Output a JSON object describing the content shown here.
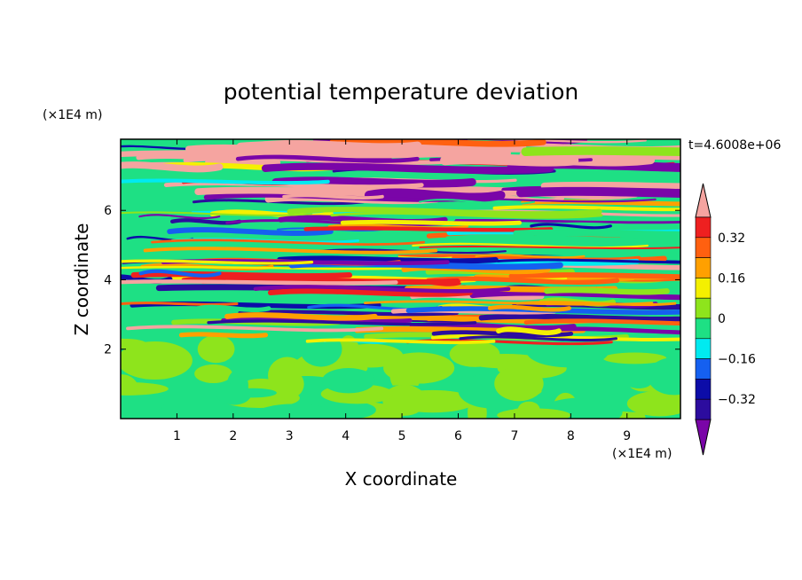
{
  "chart_data": {
    "type": "heatmap",
    "title": "potential temperature deviation",
    "xlabel": "X coordinate",
    "ylabel": "Z coordinate",
    "x_unit": "(×1E4 m)",
    "y_unit": "(×1E4 m)",
    "time_label": "t=4.6008e+06",
    "xlim": [
      0,
      9.95
    ],
    "ylim": [
      0,
      8.05
    ],
    "x_ticks": [
      1,
      2,
      3,
      4,
      5,
      6,
      7,
      8,
      9
    ],
    "y_ticks": [
      2,
      4,
      6
    ],
    "colorbar": {
      "levels": [
        {
          "max": -0.4,
          "color": "#7a05a8"
        },
        {
          "max": -0.32,
          "color": "#2c0c9e"
        },
        {
          "max": -0.24,
          "color": "#0c0ca8"
        },
        {
          "max": -0.16,
          "color": "#1560f0"
        },
        {
          "max": -0.08,
          "color": "#00eaf0"
        },
        {
          "max": 0,
          "color": "#1ee084"
        },
        {
          "max": 0.08,
          "color": "#8ee41c"
        },
        {
          "max": 0.16,
          "color": "#f4f000"
        },
        {
          "max": 0.24,
          "color": "#ffa000"
        },
        {
          "max": 0.32,
          "color": "#ff6010"
        },
        {
          "max": 0.4,
          "color": "#ee2020"
        },
        {
          "max": null,
          "color": "#f5a4a0"
        }
      ],
      "tick_labels": [
        "0.32",
        "0.16",
        "0",
        "−0.16",
        "−0.32"
      ],
      "tick_values": [
        0.32,
        0.16,
        0,
        -0.16,
        -0.32
      ]
    }
  }
}
